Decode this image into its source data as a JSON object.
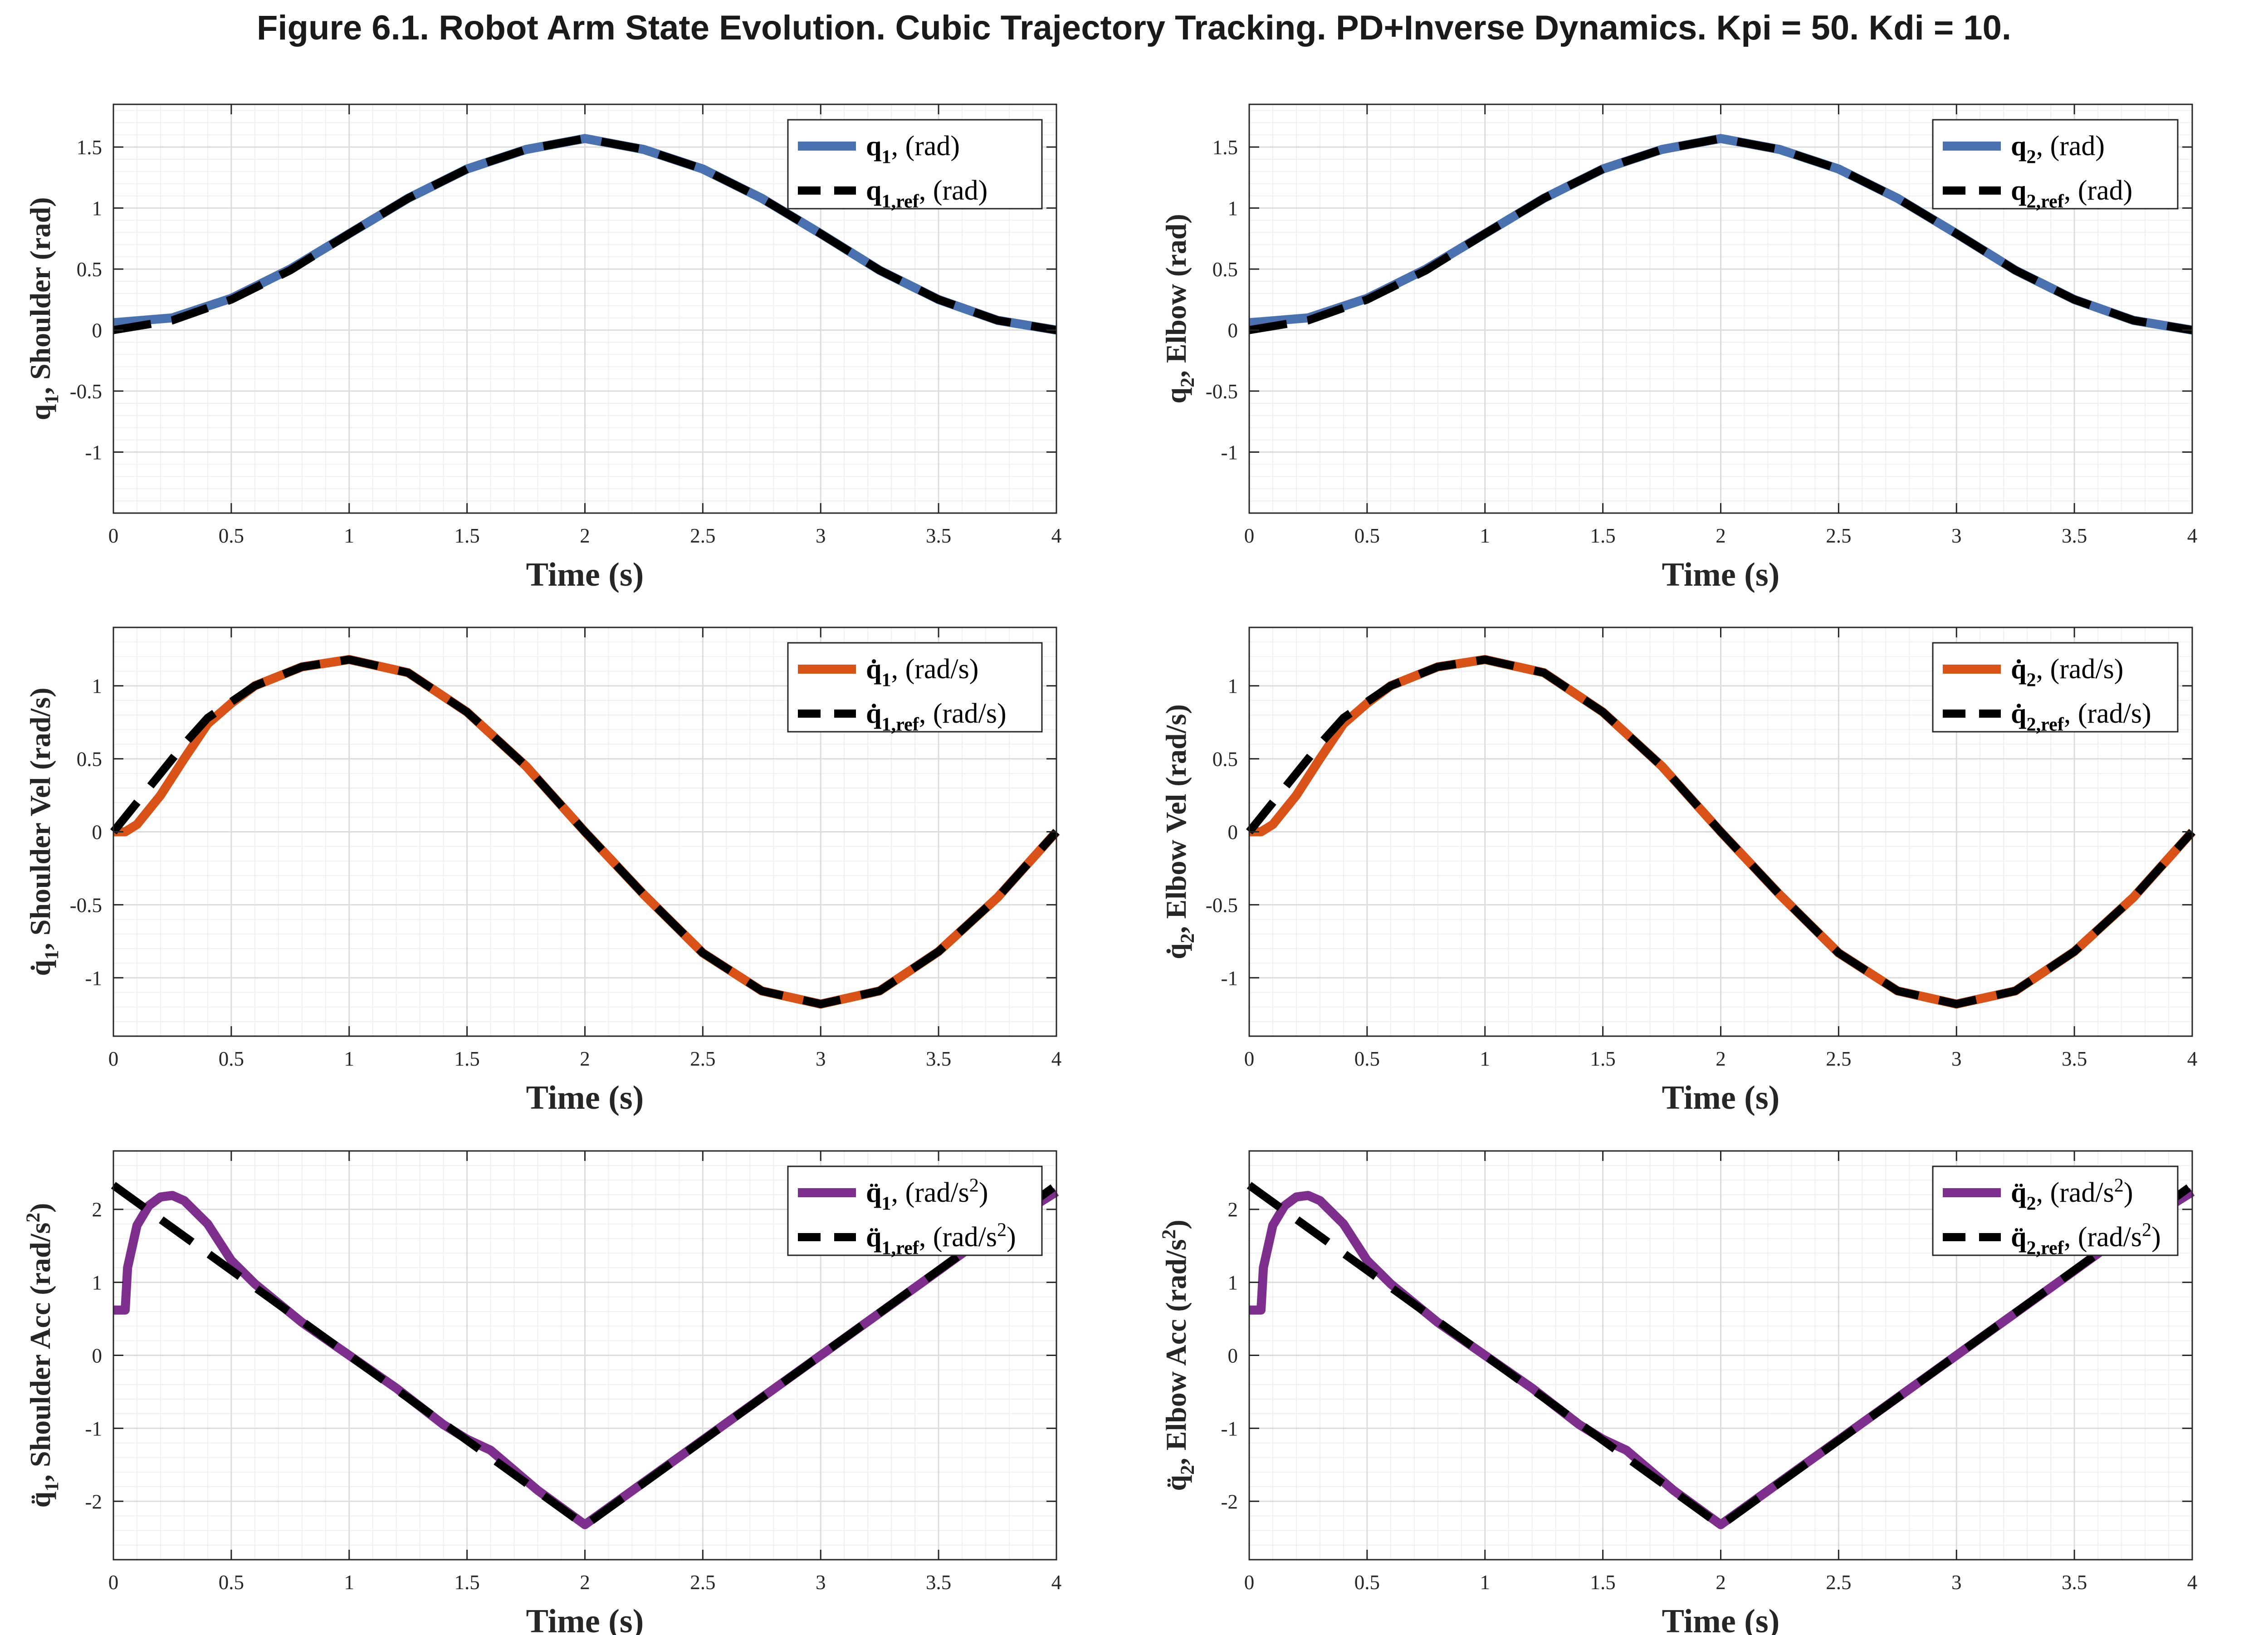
{
  "title": "Figure 6.1. Robot Arm State Evolution. Cubic Trajectory Tracking. PD+Inverse Dynamics. Kpi = 50. Kdi = 10.",
  "colors": {
    "position": "#4a72b0",
    "velocity": "#d95319",
    "acceleration": "#7e2f8e",
    "reference": "#000000"
  },
  "chart_data": [
    {
      "type": "line",
      "panel": "shoulder-position",
      "xlabel": "Time (s)",
      "ylabel": {
        "symbol": "q",
        "dots": 0,
        "sub": "1",
        "text": ", Shoulder (rad)"
      },
      "xlim": [
        0,
        4
      ],
      "ylim": [
        -1.5,
        1.85
      ],
      "xticks": [
        "0",
        "0.5",
        "1",
        "1.5",
        "2",
        "2.5",
        "3",
        "3.5",
        "4"
      ],
      "yticks": [
        "-1",
        "-0.5",
        "0",
        "0.5",
        "1",
        "1.5"
      ],
      "grid": true,
      "legend_position": "top-right",
      "series": [
        {
          "name": {
            "symbol": "q",
            "dots": 0,
            "sub": "1",
            "unit": ", (rad)"
          },
          "style": "solid",
          "color": "#4a72b0",
          "x": [
            0,
            0.25,
            0.5,
            0.75,
            1,
            1.25,
            1.5,
            1.75,
            2,
            2.25,
            2.5,
            2.75,
            3,
            3.25,
            3.5,
            3.75,
            4
          ],
          "y": [
            0.06,
            0.1,
            0.26,
            0.5,
            0.79,
            1.08,
            1.32,
            1.48,
            1.57,
            1.48,
            1.32,
            1.08,
            0.79,
            0.49,
            0.25,
            0.08,
            0.0
          ]
        },
        {
          "name": {
            "symbol": "q",
            "dots": 0,
            "sub": "1,ref",
            "unit": ", (rad)"
          },
          "style": "dashed",
          "color": "#000000",
          "x": [
            0,
            0.25,
            0.5,
            0.75,
            1,
            1.25,
            1.5,
            1.75,
            2,
            2.25,
            2.5,
            2.75,
            3,
            3.25,
            3.5,
            3.75,
            4
          ],
          "y": [
            0.0,
            0.08,
            0.25,
            0.49,
            0.79,
            1.08,
            1.32,
            1.48,
            1.57,
            1.48,
            1.32,
            1.08,
            0.79,
            0.49,
            0.25,
            0.08,
            0.0
          ]
        }
      ]
    },
    {
      "type": "line",
      "panel": "elbow-position",
      "xlabel": "Time (s)",
      "ylabel": {
        "symbol": "q",
        "dots": 0,
        "sub": "2",
        "text": ", Elbow (rad)"
      },
      "xlim": [
        0,
        4
      ],
      "ylim": [
        -1.5,
        1.85
      ],
      "xticks": [
        "0",
        "0.5",
        "1",
        "1.5",
        "2",
        "2.5",
        "3",
        "3.5",
        "4"
      ],
      "yticks": [
        "-1",
        "-0.5",
        "0",
        "0.5",
        "1",
        "1.5"
      ],
      "grid": true,
      "legend_position": "top-right",
      "series": [
        {
          "name": {
            "symbol": "q",
            "dots": 0,
            "sub": "2",
            "unit": ", (rad)"
          },
          "style": "solid",
          "color": "#4a72b0",
          "x": [
            0,
            0.25,
            0.5,
            0.75,
            1,
            1.25,
            1.5,
            1.75,
            2,
            2.25,
            2.5,
            2.75,
            3,
            3.25,
            3.5,
            3.75,
            4
          ],
          "y": [
            0.06,
            0.1,
            0.26,
            0.5,
            0.79,
            1.08,
            1.32,
            1.48,
            1.57,
            1.48,
            1.32,
            1.08,
            0.79,
            0.49,
            0.25,
            0.08,
            0.0
          ]
        },
        {
          "name": {
            "symbol": "q",
            "dots": 0,
            "sub": "2,ref",
            "unit": ", (rad)"
          },
          "style": "dashed",
          "color": "#000000",
          "x": [
            0,
            0.25,
            0.5,
            0.75,
            1,
            1.25,
            1.5,
            1.75,
            2,
            2.25,
            2.5,
            2.75,
            3,
            3.25,
            3.5,
            3.75,
            4
          ],
          "y": [
            0.0,
            0.08,
            0.25,
            0.49,
            0.79,
            1.08,
            1.32,
            1.48,
            1.57,
            1.48,
            1.32,
            1.08,
            0.79,
            0.49,
            0.25,
            0.08,
            0.0
          ]
        }
      ]
    },
    {
      "type": "line",
      "panel": "shoulder-velocity",
      "xlabel": "Time (s)",
      "ylabel": {
        "symbol": "q",
        "dots": 1,
        "sub": "1",
        "text": ", Shoulder Vel (rad/s)"
      },
      "xlim": [
        0,
        4
      ],
      "ylim": [
        -1.4,
        1.4
      ],
      "xticks": [
        "0",
        "0.5",
        "1",
        "1.5",
        "2",
        "2.5",
        "3",
        "3.5",
        "4"
      ],
      "yticks": [
        "-1",
        "-0.5",
        "0",
        "0.5",
        "1"
      ],
      "grid": true,
      "legend_position": "top-right",
      "series": [
        {
          "name": {
            "symbol": "q",
            "dots": 1,
            "sub": "1",
            "unit": ", (rad/s)"
          },
          "style": "solid",
          "color": "#d95319",
          "x": [
            0,
            0.05,
            0.1,
            0.2,
            0.3,
            0.4,
            0.5,
            0.6,
            0.8,
            1,
            1.25,
            1.5,
            1.75,
            2,
            2.25,
            2.5,
            2.75,
            3,
            3.25,
            3.5,
            3.75,
            4
          ],
          "y": [
            0.0,
            0.0,
            0.05,
            0.25,
            0.5,
            0.74,
            0.88,
            1.0,
            1.13,
            1.18,
            1.09,
            0.82,
            0.45,
            0.0,
            -0.43,
            -0.83,
            -1.09,
            -1.18,
            -1.09,
            -0.82,
            -0.45,
            0.0
          ]
        },
        {
          "name": {
            "symbol": "q",
            "dots": 1,
            "sub": "1,ref",
            "unit": ", (rad/s)"
          },
          "style": "dashed",
          "color": "#000000",
          "x": [
            0,
            0.1,
            0.2,
            0.3,
            0.4,
            0.5,
            0.6,
            0.8,
            1,
            1.25,
            1.5,
            1.75,
            2,
            2.25,
            2.5,
            2.75,
            3,
            3.25,
            3.5,
            3.75,
            4
          ],
          "y": [
            0.0,
            0.2,
            0.4,
            0.6,
            0.78,
            0.89,
            1.0,
            1.13,
            1.18,
            1.09,
            0.82,
            0.45,
            0.0,
            -0.43,
            -0.83,
            -1.09,
            -1.18,
            -1.09,
            -0.82,
            -0.45,
            0.0
          ]
        }
      ]
    },
    {
      "type": "line",
      "panel": "elbow-velocity",
      "xlabel": "Time (s)",
      "ylabel": {
        "symbol": "q",
        "dots": 1,
        "sub": "2",
        "text": ", Elbow Vel (rad/s)"
      },
      "xlim": [
        0,
        4
      ],
      "ylim": [
        -1.4,
        1.4
      ],
      "xticks": [
        "0",
        "0.5",
        "1",
        "1.5",
        "2",
        "2.5",
        "3",
        "3.5",
        "4"
      ],
      "yticks": [
        "-1",
        "-0.5",
        "0",
        "0.5",
        "1"
      ],
      "grid": true,
      "legend_position": "top-right",
      "series": [
        {
          "name": {
            "symbol": "q",
            "dots": 1,
            "sub": "2",
            "unit": ", (rad/s)"
          },
          "style": "solid",
          "color": "#d95319",
          "x": [
            0,
            0.05,
            0.1,
            0.2,
            0.3,
            0.4,
            0.5,
            0.6,
            0.8,
            1,
            1.25,
            1.5,
            1.75,
            2,
            2.25,
            2.5,
            2.75,
            3,
            3.25,
            3.5,
            3.75,
            4
          ],
          "y": [
            0.0,
            0.0,
            0.05,
            0.25,
            0.5,
            0.74,
            0.88,
            1.0,
            1.13,
            1.18,
            1.09,
            0.82,
            0.45,
            0.0,
            -0.43,
            -0.83,
            -1.09,
            -1.18,
            -1.09,
            -0.82,
            -0.45,
            0.0
          ]
        },
        {
          "name": {
            "symbol": "q",
            "dots": 1,
            "sub": "2,ref",
            "unit": ", (rad/s)"
          },
          "style": "dashed",
          "color": "#000000",
          "x": [
            0,
            0.1,
            0.2,
            0.3,
            0.4,
            0.5,
            0.6,
            0.8,
            1,
            1.25,
            1.5,
            1.75,
            2,
            2.25,
            2.5,
            2.75,
            3,
            3.25,
            3.5,
            3.75,
            4
          ],
          "y": [
            0.0,
            0.2,
            0.4,
            0.6,
            0.78,
            0.89,
            1.0,
            1.13,
            1.18,
            1.09,
            0.82,
            0.45,
            0.0,
            -0.43,
            -0.83,
            -1.09,
            -1.18,
            -1.09,
            -0.82,
            -0.45,
            0.0
          ]
        }
      ]
    },
    {
      "type": "line",
      "panel": "shoulder-acceleration",
      "xlabel": "Time (s)",
      "ylabel": {
        "symbol": "q",
        "dots": 2,
        "sub": "1",
        "text": ", Shoulder Acc (rad/s",
        "sup": "2",
        "after": ")"
      },
      "xlim": [
        0,
        4
      ],
      "ylim": [
        -2.8,
        2.8
      ],
      "xticks": [
        "0",
        "0.5",
        "1",
        "1.5",
        "2",
        "2.5",
        "3",
        "3.5",
        "4"
      ],
      "yticks": [
        "-2",
        "-1",
        "0",
        "1",
        "2"
      ],
      "grid": true,
      "legend_position": "top-right",
      "series": [
        {
          "name": {
            "symbol": "q",
            "dots": 2,
            "sub": "1",
            "unit": ", (rad/s",
            "sup": "2",
            "after": ")"
          },
          "style": "solid",
          "color": "#7e2f8e",
          "x": [
            0,
            0.05,
            0.06,
            0.1,
            0.15,
            0.2,
            0.25,
            0.3,
            0.4,
            0.5,
            0.6,
            0.8,
            1,
            1.2,
            1.4,
            1.5,
            1.6,
            1.8,
            2,
            2.5,
            3,
            3.5,
            3.7,
            4
          ],
          "y": [
            0.62,
            0.62,
            1.2,
            1.78,
            2.05,
            2.17,
            2.19,
            2.12,
            1.8,
            1.3,
            0.98,
            0.45,
            0.0,
            -0.45,
            -0.95,
            -1.15,
            -1.3,
            -1.85,
            -2.32,
            -1.16,
            0.0,
            1.16,
            1.63,
            2.24
          ]
        },
        {
          "name": {
            "symbol": "q",
            "dots": 2,
            "sub": "1,ref",
            "unit": ", (rad/s",
            "sup": "2",
            "after": ")"
          },
          "style": "dashed",
          "color": "#000000",
          "x": [
            0,
            2,
            4
          ],
          "y": [
            2.33,
            -2.33,
            2.33
          ]
        }
      ]
    },
    {
      "type": "line",
      "panel": "elbow-acceleration",
      "xlabel": "Time (s)",
      "ylabel": {
        "symbol": "q",
        "dots": 2,
        "sub": "2",
        "text": ", Elbow Acc (rad/s",
        "sup": "2",
        "after": ")"
      },
      "xlim": [
        0,
        4
      ],
      "ylim": [
        -2.8,
        2.8
      ],
      "xticks": [
        "0",
        "0.5",
        "1",
        "1.5",
        "2",
        "2.5",
        "3",
        "3.5",
        "4"
      ],
      "yticks": [
        "-2",
        "-1",
        "0",
        "1",
        "2"
      ],
      "grid": true,
      "legend_position": "top-right",
      "series": [
        {
          "name": {
            "symbol": "q",
            "dots": 2,
            "sub": "2",
            "unit": ", (rad/s",
            "sup": "2",
            "after": ")"
          },
          "style": "solid",
          "color": "#7e2f8e",
          "x": [
            0,
            0.05,
            0.06,
            0.1,
            0.15,
            0.2,
            0.25,
            0.3,
            0.4,
            0.5,
            0.6,
            0.8,
            1,
            1.2,
            1.4,
            1.5,
            1.6,
            1.8,
            2,
            2.5,
            3,
            3.5,
            3.7,
            4
          ],
          "y": [
            0.62,
            0.62,
            1.2,
            1.78,
            2.05,
            2.17,
            2.19,
            2.12,
            1.8,
            1.3,
            0.98,
            0.45,
            0.0,
            -0.45,
            -0.95,
            -1.15,
            -1.3,
            -1.85,
            -2.32,
            -1.16,
            0.0,
            1.16,
            1.63,
            2.24
          ]
        },
        {
          "name": {
            "symbol": "q",
            "dots": 2,
            "sub": "2,ref",
            "unit": ", (rad/s",
            "sup": "2",
            "after": ")"
          },
          "style": "dashed",
          "color": "#000000",
          "x": [
            0,
            2,
            4
          ],
          "y": [
            2.33,
            -2.33,
            2.33
          ]
        }
      ]
    }
  ]
}
